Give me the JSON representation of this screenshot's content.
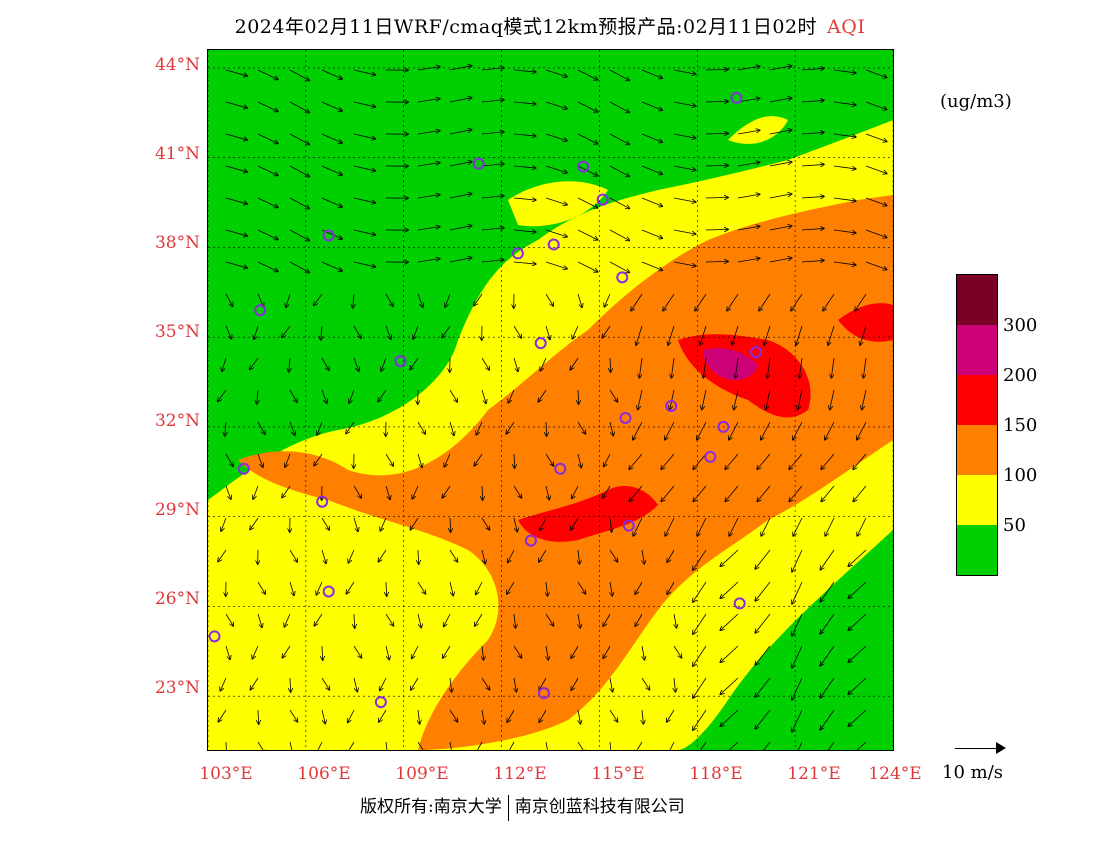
{
  "title": {
    "main": "2024年02月11日WRF/cmaq模式12km预报产品:02月11日02时",
    "variable": "AQI"
  },
  "units": "(ug/m3)",
  "lat_labels": [
    "44°N",
    "41°N",
    "38°N",
    "35°N",
    "32°N",
    "29°N",
    "26°N",
    "23°N"
  ],
  "lon_labels": [
    "103°E",
    "106°E",
    "109°E",
    "112°E",
    "115°E",
    "118°E",
    "121°E",
    "124°E"
  ],
  "colorbar": {
    "labels": [
      "300",
      "200",
      "150",
      "100",
      "50"
    ],
    "colors": [
      "#7a0026",
      "#cc0077",
      "#ff0000",
      "#ff7f00",
      "#ffff00",
      "#00d000"
    ]
  },
  "vector_reference": "10 m/s",
  "credit": {
    "left": "版权所有:南京大学",
    "right": "南京创蓝科技有限公司"
  },
  "map": {
    "extent": {
      "lon": [
        103,
        124
      ],
      "lat": [
        21.2,
        44.6
      ]
    },
    "station_color": "#8a2be2",
    "stations": [
      {
        "lon": 103.2,
        "lat": 25.0
      },
      {
        "lon": 104.6,
        "lat": 35.9
      },
      {
        "lon": 106.7,
        "lat": 38.4
      },
      {
        "lon": 108.9,
        "lat": 34.2
      },
      {
        "lon": 111.3,
        "lat": 40.8
      },
      {
        "lon": 112.5,
        "lat": 37.8
      },
      {
        "lon": 113.6,
        "lat": 38.1
      },
      {
        "lon": 114.5,
        "lat": 40.7
      },
      {
        "lon": 115.1,
        "lat": 39.6
      },
      {
        "lon": 115.7,
        "lat": 37.0
      },
      {
        "lon": 113.2,
        "lat": 34.8
      },
      {
        "lon": 117.2,
        "lat": 32.7
      },
      {
        "lon": 115.8,
        "lat": 32.3
      },
      {
        "lon": 118.8,
        "lat": 32.0
      },
      {
        "lon": 118.4,
        "lat": 31.0
      },
      {
        "lon": 113.8,
        "lat": 30.6
      },
      {
        "lon": 104.1,
        "lat": 30.6
      },
      {
        "lon": 106.5,
        "lat": 29.5
      },
      {
        "lon": 112.9,
        "lat": 28.2
      },
      {
        "lon": 115.9,
        "lat": 28.7
      },
      {
        "lon": 119.3,
        "lat": 26.1
      },
      {
        "lon": 106.7,
        "lat": 26.5
      },
      {
        "lon": 108.3,
        "lat": 22.8
      },
      {
        "lon": 113.3,
        "lat": 23.1
      },
      {
        "lon": 119.2,
        "lat": 43.0
      },
      {
        "lon": 119.8,
        "lat": 34.5
      }
    ]
  }
}
